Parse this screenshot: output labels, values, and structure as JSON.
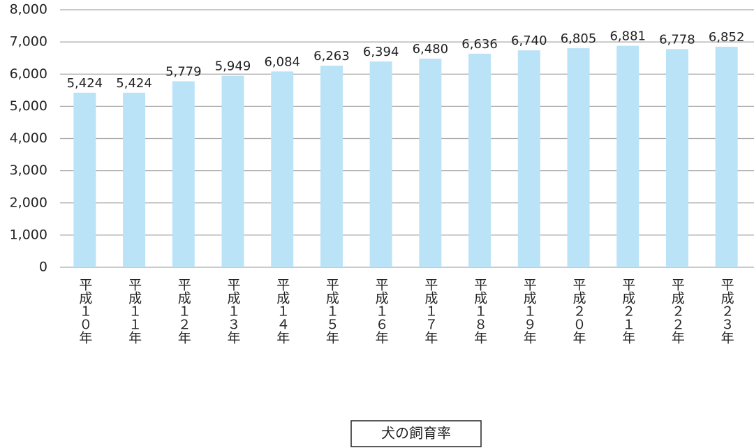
{
  "chart_data": {
    "type": "bar",
    "categories": [
      "平成１０年",
      "平成１１年",
      "平成１２年",
      "平成１３年",
      "平成１４年",
      "平成１５年",
      "平成１６年",
      "平成１７年",
      "平成１８年",
      "平成１９年",
      "平成２０年",
      "平成２１年",
      "平成２２年",
      "平成２３年"
    ],
    "series": [
      {
        "name": "犬の飼育率",
        "color": "#bae3f7",
        "values": [
          5424,
          5424,
          5779,
          5949,
          6084,
          6263,
          6394,
          6480,
          6636,
          6740,
          6805,
          6881,
          6778,
          6852
        ],
        "value_labels": [
          "5,424",
          "5,424",
          "5,779",
          "5,949",
          "6,084",
          "6,263",
          "6,394",
          "6,480",
          "6,636",
          "6,740",
          "6,805",
          "6,881",
          "6,778",
          "6,852"
        ]
      }
    ],
    "ylim": [
      0,
      8000
    ],
    "yticks": [
      0,
      {
        "value": 1000,
        "label": "1,000"
      },
      {
        "value": 2000,
        "label": "2,000"
      },
      {
        "value": 3000,
        "label": "3,000"
      },
      {
        "value": 4000,
        "label": "4,000"
      },
      {
        "value": 5000,
        "label": "5,000"
      },
      {
        "value": 6000,
        "label": "6,000"
      },
      {
        "value": 7000,
        "label": "7,000"
      },
      {
        "value": 8000,
        "label": "8,000"
      }
    ],
    "grid": true
  }
}
